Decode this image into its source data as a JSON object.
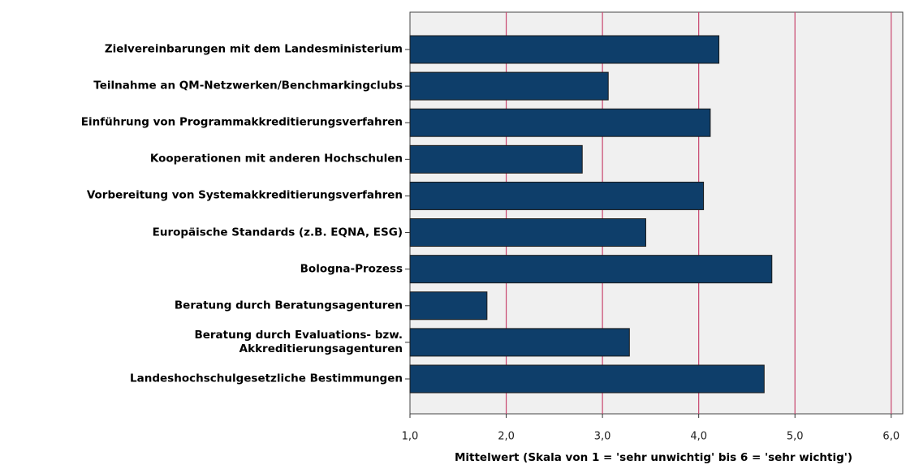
{
  "chart_data": {
    "type": "bar",
    "orientation": "horizontal",
    "x_label": "Mittelwert (Skala von 1 = 'sehr unwichtig' bis 6 = 'sehr wichtig')",
    "categories": [
      "Zielvereinbarungen mit dem Landesministerium",
      "Teilnahme an QM-Netzwerken/Benchmarkingclubs",
      "Einführung von Programmakkreditierungsverfahren",
      "Kooperationen mit anderen Hochschulen",
      "Vorbereitung von Systemakkreditierungsverfahren",
      "Europäische Standards (z.B. EQNA, ESG)",
      "Bologna-Prozess",
      "Beratung durch Beratungsagenturen",
      "Beratung durch Evaluations- bzw.\nAkkreditierungsagenturen",
      "Landeshochschulgesetzliche Bestimmungen"
    ],
    "values": [
      4.21,
      3.06,
      4.12,
      2.79,
      4.05,
      3.45,
      4.76,
      1.8,
      3.28,
      4.68
    ],
    "color": "#0e3e6a",
    "grid_color": "#c8466e",
    "background": "#f0f0f0",
    "xlim": [
      1,
      6.12
    ],
    "xticks": [
      {
        "value": 1,
        "label": "1,0"
      },
      {
        "value": 2,
        "label": "2,0"
      },
      {
        "value": 3,
        "label": "3,0"
      },
      {
        "value": 4,
        "label": "4,0"
      },
      {
        "value": 5,
        "label": "5,0"
      },
      {
        "value": 6,
        "label": "6,0"
      }
    ],
    "grid": true
  }
}
